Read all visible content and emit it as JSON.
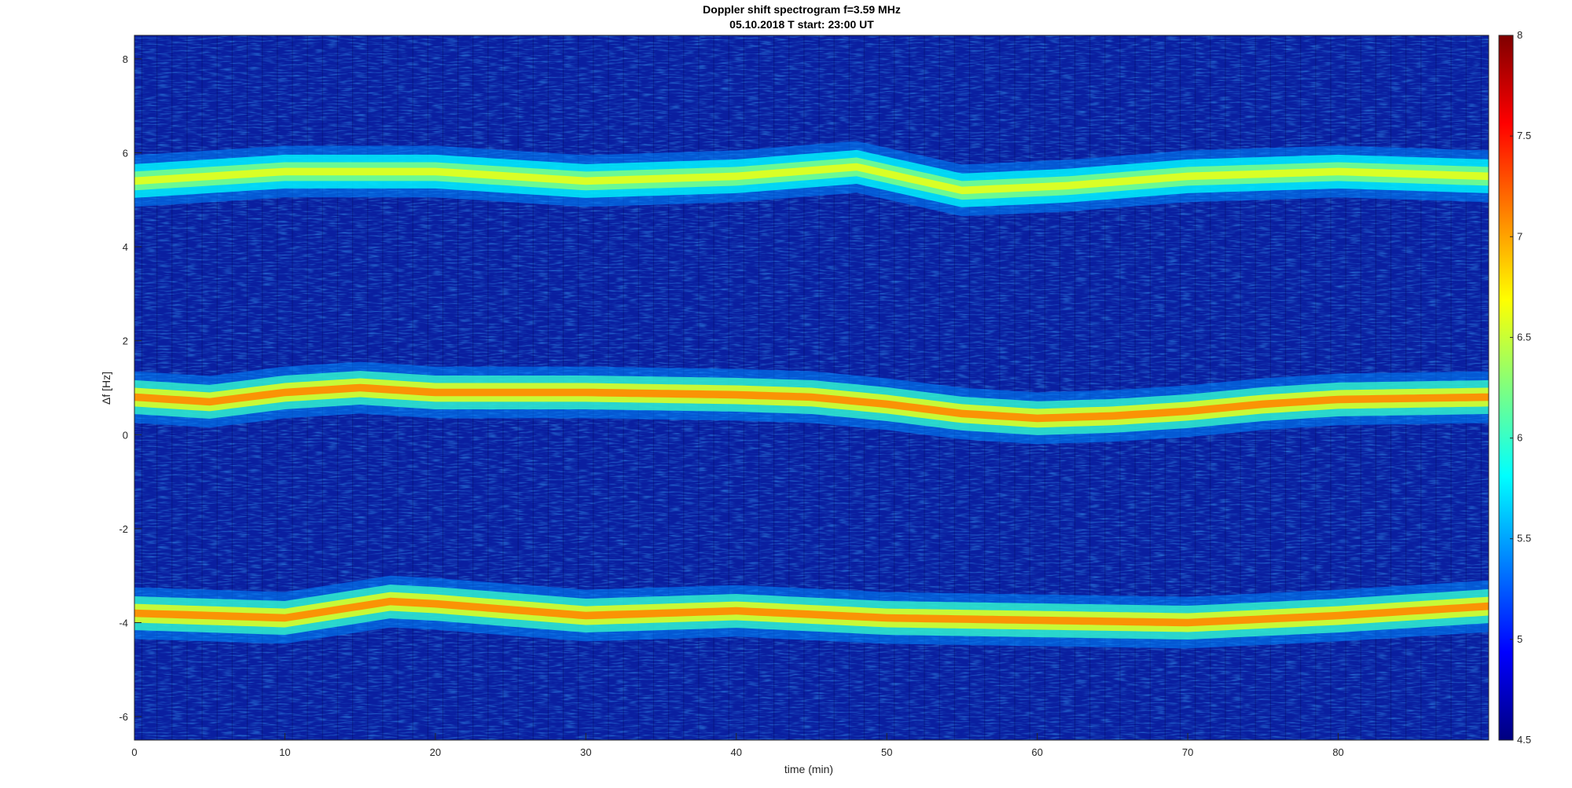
{
  "chart_data": {
    "type": "heatmap",
    "title": "Doppler shift spectrogram f=3.59 MHz",
    "subtitle": "05.10.2018   T start: 23:00 UT",
    "xlabel": "time (min)",
    "ylabel": "Δf [Hz]",
    "xlim": [
      0,
      90
    ],
    "ylim": [
      -6.5,
      8.5
    ],
    "x_ticks": [
      0,
      10,
      20,
      30,
      40,
      50,
      60,
      70,
      80
    ],
    "y_ticks": [
      -6,
      -4,
      -2,
      0,
      2,
      4,
      6,
      8
    ],
    "colorbar": {
      "range": [
        4.5,
        8
      ],
      "ticks": [
        4.5,
        5,
        5.5,
        6,
        6.5,
        7,
        7.5,
        8
      ],
      "tick_labels": [
        "4.5",
        "5",
        "5.5",
        "6",
        "6.5",
        "7",
        "7.5",
        "8"
      ],
      "colormap": "jet",
      "colors": [
        "#00007f",
        "#0000ff",
        "#007fff",
        "#00ffff",
        "#7fff7f",
        "#ffff00",
        "#ff7f00",
        "#ff0000",
        "#7f0000"
      ]
    },
    "grid": false,
    "background_color": "#0a1fa0",
    "bands": [
      {
        "time": [
          0,
          10,
          20,
          30,
          40,
          48,
          55,
          62,
          70,
          80,
          90
        ],
        "doppler": [
          5.4,
          5.6,
          5.6,
          5.4,
          5.5,
          5.7,
          5.2,
          5.3,
          5.5,
          5.6,
          5.5
        ],
        "intensity": 6.6
      },
      {
        "time": [
          0,
          5,
          10,
          15,
          20,
          30,
          40,
          45,
          50,
          55,
          60,
          65,
          70,
          75,
          80,
          90
        ],
        "doppler": [
          0.8,
          0.7,
          0.9,
          1.0,
          0.9,
          0.9,
          0.85,
          0.8,
          0.65,
          0.45,
          0.35,
          0.4,
          0.5,
          0.65,
          0.75,
          0.8
        ],
        "intensity": 7.1
      },
      {
        "time": [
          0,
          10,
          17,
          20,
          30,
          40,
          50,
          60,
          70,
          80,
          90
        ],
        "doppler": [
          -3.8,
          -3.9,
          -3.55,
          -3.6,
          -3.85,
          -3.75,
          -3.9,
          -3.95,
          -4.0,
          -3.85,
          -3.65
        ],
        "intensity": 7.1
      }
    ]
  }
}
